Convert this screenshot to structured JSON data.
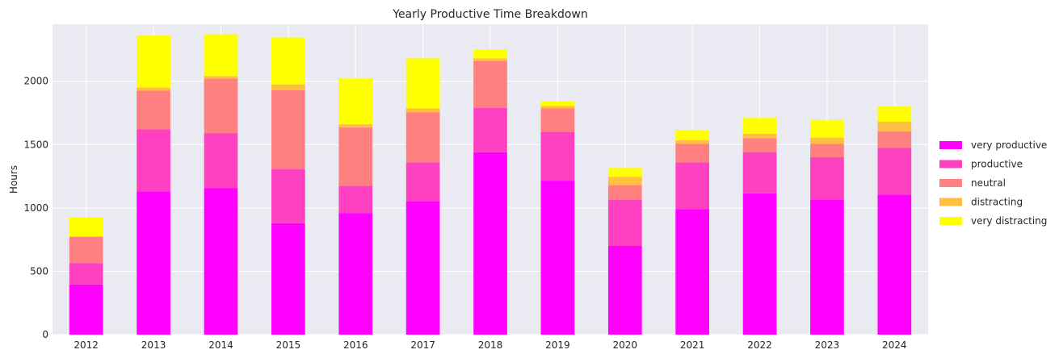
{
  "chart_data": {
    "type": "bar",
    "stacked": true,
    "title": "Yearly Productive Time Breakdown",
    "xlabel": "",
    "ylabel": "Hours",
    "ylim": [
      0,
      2450
    ],
    "yticks": [
      0,
      500,
      1000,
      1500,
      2000
    ],
    "grid": true,
    "legend_position": "right",
    "categories": [
      "2012",
      "2013",
      "2014",
      "2015",
      "2016",
      "2017",
      "2018",
      "2019",
      "2020",
      "2021",
      "2022",
      "2023",
      "2024"
    ],
    "series": [
      {
        "name": "very productive",
        "color": "#ff00ff",
        "values": [
          395,
          1130,
          1155,
          880,
          960,
          1050,
          1440,
          1215,
          700,
          990,
          1115,
          1065,
          1105
        ]
      },
      {
        "name": "productive",
        "color": "#ff40c0",
        "values": [
          170,
          490,
          435,
          425,
          215,
          310,
          350,
          385,
          365,
          370,
          325,
          335,
          370
        ]
      },
      {
        "name": "neutral",
        "color": "#ff8080",
        "values": [
          205,
          305,
          430,
          625,
          460,
          395,
          370,
          185,
          115,
          145,
          110,
          105,
          130
        ]
      },
      {
        "name": "distracting",
        "color": "#ffbf40",
        "values": [
          5,
          25,
          20,
          45,
          25,
          30,
          20,
          20,
          65,
          30,
          35,
          50,
          75
        ]
      },
      {
        "name": "very distracting",
        "color": "#ffff00",
        "values": [
          150,
          410,
          330,
          370,
          365,
          395,
          70,
          35,
          70,
          80,
          125,
          140,
          120
        ]
      }
    ]
  }
}
